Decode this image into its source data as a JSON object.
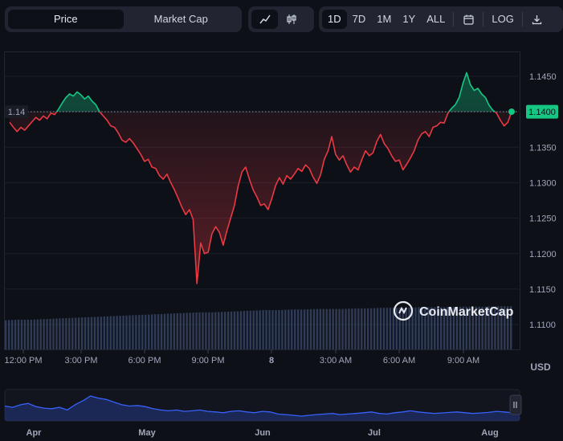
{
  "toolbar": {
    "segments": [
      {
        "label": "Price",
        "active": true
      },
      {
        "label": "Market Cap",
        "active": false
      }
    ],
    "chart_types": [
      {
        "icon": "line-chart-icon",
        "active": true
      },
      {
        "icon": "candlestick-icon",
        "active": false
      }
    ],
    "ranges": [
      {
        "label": "1D",
        "active": true
      },
      {
        "label": "7D",
        "active": false
      },
      {
        "label": "1M",
        "active": false
      },
      {
        "label": "1Y",
        "active": false
      },
      {
        "label": "ALL",
        "active": false
      }
    ],
    "calendar_icon": "calendar-icon",
    "log_label": "LOG",
    "download_icon": "download-icon"
  },
  "watermark": "CoinMarketCap",
  "currency_label": "USD",
  "colors": {
    "up": "#16c784",
    "down": "#ea3943",
    "background": "#0d1017",
    "baseline_badge": "#1a1d26",
    "last_badge": "#16c784",
    "volume": "#3c4b6e",
    "navigator_line": "#3861fb"
  },
  "chart_data": {
    "type": "line",
    "x_labels": [
      "12:00 PM",
      "3:00 PM",
      "6:00 PM",
      "9:00 PM",
      "8",
      "3:00 AM",
      "6:00 AM",
      "9:00 AM"
    ],
    "y_ticks": [
      "1.1100",
      "1.1150",
      "1.1200",
      "1.1250",
      "1.1300",
      "1.1350",
      "1.1400",
      "1.1450"
    ],
    "ylim": [
      1.1065,
      1.1485
    ],
    "baseline": 1.14,
    "baseline_label": "1.14",
    "last_price": 1.14,
    "last_price_label": "1.1400",
    "grid": true,
    "series": [
      {
        "values": [
          1.1385,
          1.1378,
          1.1372,
          1.1378,
          1.1374,
          1.138,
          1.1386,
          1.1392,
          1.1388,
          1.1394,
          1.139,
          1.1398,
          1.1396,
          1.1403,
          1.1412,
          1.142,
          1.1425,
          1.1422,
          1.1428,
          1.1424,
          1.1418,
          1.1422,
          1.1415,
          1.141,
          1.14,
          1.1394,
          1.1388,
          1.138,
          1.1378,
          1.137,
          1.136,
          1.1357,
          1.1362,
          1.1356,
          1.1348,
          1.134,
          1.133,
          1.1333,
          1.1322,
          1.132,
          1.131,
          1.1305,
          1.1312,
          1.13,
          1.129,
          1.1278,
          1.1265,
          1.1255,
          1.1262,
          1.1248,
          1.1158,
          1.1215,
          1.12,
          1.1202,
          1.1228,
          1.1238,
          1.123,
          1.1212,
          1.1232,
          1.125,
          1.1268,
          1.1295,
          1.1315,
          1.1322,
          1.1305,
          1.129,
          1.128,
          1.1268,
          1.127,
          1.1262,
          1.1278,
          1.1296,
          1.1307,
          1.1298,
          1.131,
          1.1305,
          1.1312,
          1.132,
          1.1316,
          1.1325,
          1.132,
          1.1308,
          1.1299,
          1.1311,
          1.1333,
          1.1345,
          1.1365,
          1.134,
          1.1332,
          1.1338,
          1.1325,
          1.1315,
          1.1322,
          1.1318,
          1.1332,
          1.1345,
          1.1338,
          1.1342,
          1.1358,
          1.1368,
          1.1355,
          1.1348,
          1.1338,
          1.133,
          1.1332,
          1.1318,
          1.1326,
          1.1335,
          1.1345,
          1.136,
          1.1369,
          1.1372,
          1.1365,
          1.1378,
          1.138,
          1.1385,
          1.1384,
          1.1398,
          1.1405,
          1.141,
          1.142,
          1.144,
          1.1455,
          1.1438,
          1.143,
          1.1433,
          1.1425,
          1.142,
          1.1409,
          1.1402,
          1.1398,
          1.1388,
          1.138,
          1.1385,
          1.14
        ]
      }
    ],
    "volume": {
      "values": [
        0.52,
        0.53,
        0.53,
        0.54,
        0.55,
        0.56,
        0.57,
        0.58,
        0.59,
        0.6,
        0.61,
        0.62,
        0.63,
        0.64,
        0.65,
        0.66,
        0.66,
        0.67,
        0.68,
        0.69,
        0.7,
        0.7,
        0.71,
        0.71,
        0.72,
        0.72,
        0.72,
        0.73,
        0.73,
        0.74,
        0.74,
        0.74,
        0.75,
        0.75,
        0.75,
        0.76,
        0.76,
        0.76,
        0.77,
        0.77
      ]
    },
    "navigator": {
      "x_labels": [
        "Apr",
        "May",
        "Jun",
        "Jul",
        "Aug"
      ],
      "values": [
        0.5,
        0.45,
        0.55,
        0.6,
        0.48,
        0.42,
        0.4,
        0.45,
        0.35,
        0.55,
        0.7,
        0.88,
        0.8,
        0.75,
        0.65,
        0.55,
        0.5,
        0.52,
        0.48,
        0.4,
        0.35,
        0.32,
        0.35,
        0.3,
        0.32,
        0.35,
        0.3,
        0.28,
        0.25,
        0.3,
        0.32,
        0.28,
        0.25,
        0.3,
        0.28,
        0.2,
        0.18,
        0.15,
        0.12,
        0.15,
        0.18,
        0.2,
        0.22,
        0.18,
        0.2,
        0.22,
        0.25,
        0.28,
        0.22,
        0.2,
        0.25,
        0.28,
        0.32,
        0.28,
        0.25,
        0.22,
        0.24,
        0.26,
        0.28,
        0.25,
        0.22,
        0.24,
        0.26,
        0.3,
        0.28,
        0.25,
        0.23
      ]
    }
  }
}
